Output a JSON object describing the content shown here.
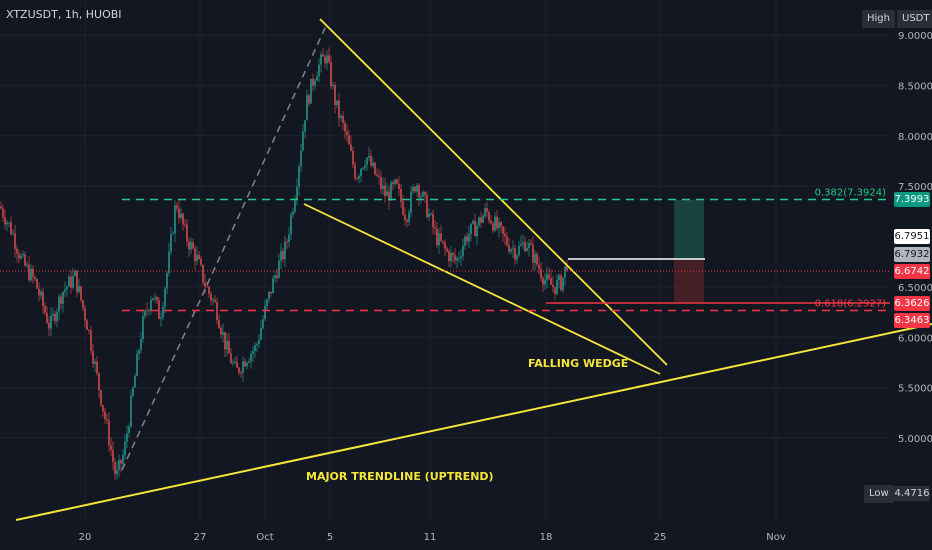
{
  "header": {
    "symbol": "XTZUSDT, 1h, HUOBI",
    "mode_label": "High",
    "currency_label": "USDT"
  },
  "low_label": {
    "text": "Low",
    "value": "4.4716"
  },
  "colors": {
    "background": "#131722",
    "yellow": "#f5e63a",
    "green": "#26a69a",
    "red": "#ef5350"
  },
  "chart_data": {
    "type": "candlestick",
    "title": "",
    "xlabel": "",
    "ylabel": "",
    "ylim": [
      4.25,
      9.2
    ],
    "y_ticks": [
      "9.0000",
      "8.5000",
      "8.0000",
      "7.5000",
      "6.5000",
      "6.0000",
      "5.5000",
      "5.0000"
    ],
    "x_ticks": [
      "20",
      "27",
      "Oct",
      "5",
      "11",
      "18",
      "25",
      "Nov"
    ],
    "price_tags": [
      {
        "value": 7.3993,
        "text": "7.3993",
        "bg": "#089981",
        "fg": "#ffffff"
      },
      {
        "value": 6.7951,
        "text": "6.7951",
        "bg": "#ffffff",
        "fg": "#131722"
      },
      {
        "value": 6.7932,
        "text": "6.7932",
        "bg": "#b2b5be",
        "fg": "#131722"
      },
      {
        "value": 6.6742,
        "text": "6.6742",
        "bg": "#f23645",
        "fg": "#ffffff"
      },
      {
        "value": 6.3626,
        "text": "6.3626",
        "bg": "#f23645",
        "fg": "#ffffff"
      },
      {
        "value": 6.3463,
        "text": "6.3463",
        "bg": "#f23645",
        "fg": "#ffffff"
      }
    ],
    "fib_levels": [
      {
        "label": "0.382(7.3924)",
        "value": 7.3924,
        "color": "#22c98b"
      },
      {
        "label": "0.618(6.2927)",
        "value": 6.2927,
        "color": "#f23645"
      }
    ],
    "annotations": [
      {
        "text": "FALLING WEDGE"
      },
      {
        "text": "MAJOR TRENDLINE (UPTREND)"
      }
    ],
    "candles_anchor_path": [
      [
        0,
        7.3
      ],
      [
        12,
        7.05
      ],
      [
        22,
        6.75
      ],
      [
        35,
        6.55
      ],
      [
        50,
        6.1
      ],
      [
        62,
        6.45
      ],
      [
        75,
        6.6
      ],
      [
        88,
        6.1
      ],
      [
        98,
        5.55
      ],
      [
        108,
        5.05
      ],
      [
        116,
        4.6
      ],
      [
        124,
        4.85
      ],
      [
        132,
        5.4
      ],
      [
        142,
        6.1
      ],
      [
        152,
        6.45
      ],
      [
        160,
        6.2
      ],
      [
        168,
        6.7
      ],
      [
        176,
        7.35
      ],
      [
        186,
        7.0
      ],
      [
        196,
        6.8
      ],
      [
        206,
        6.5
      ],
      [
        216,
        6.3
      ],
      [
        226,
        5.9
      ],
      [
        236,
        5.65
      ],
      [
        246,
        5.8
      ],
      [
        256,
        5.9
      ],
      [
        266,
        6.3
      ],
      [
        276,
        6.65
      ],
      [
        286,
        6.9
      ],
      [
        296,
        7.5
      ],
      [
        306,
        8.3
      ],
      [
        316,
        8.65
      ],
      [
        326,
        8.8
      ],
      [
        336,
        8.3
      ],
      [
        346,
        8.0
      ],
      [
        356,
        7.6
      ],
      [
        366,
        7.8
      ],
      [
        376,
        7.6
      ],
      [
        386,
        7.4
      ],
      [
        396,
        7.5
      ],
      [
        406,
        7.2
      ],
      [
        416,
        7.55
      ],
      [
        426,
        7.3
      ],
      [
        436,
        7.0
      ],
      [
        446,
        6.85
      ],
      [
        456,
        6.75
      ],
      [
        466,
        7.0
      ],
      [
        476,
        7.1
      ],
      [
        486,
        7.25
      ],
      [
        496,
        7.1
      ],
      [
        506,
        6.95
      ],
      [
        516,
        6.85
      ],
      [
        526,
        6.95
      ],
      [
        536,
        6.75
      ],
      [
        546,
        6.55
      ],
      [
        554,
        6.5
      ],
      [
        562,
        6.55
      ],
      [
        568,
        6.79
      ]
    ]
  }
}
